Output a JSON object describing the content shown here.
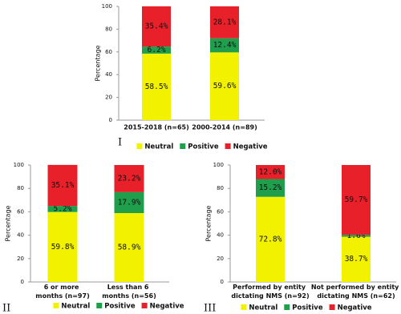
{
  "chart_data": [
    {
      "type": "stacked_bar",
      "panel_label": "I",
      "ylabel": "Percentage",
      "categories": [
        "2015-2018 (n=65)",
        "2000-2014 (n=89)"
      ],
      "ylim": [
        0,
        100
      ],
      "yticks": [
        0,
        20,
        40,
        60,
        80,
        100
      ],
      "series": [
        {
          "name": "Neutral",
          "color": "#f2f200",
          "values": [
            58.5,
            59.6
          ],
          "value_labels": [
            "58.5%",
            "59.6%"
          ]
        },
        {
          "name": "Positive",
          "color": "#1f9e4b",
          "values": [
            6.2,
            12.4
          ],
          "value_labels": [
            "6.2%",
            "12.4%"
          ]
        },
        {
          "name": "Negative",
          "color": "#e8202a",
          "values": [
            35.4,
            28.1
          ],
          "value_labels": [
            "35.4%",
            "28.1%"
          ]
        }
      ]
    },
    {
      "type": "stacked_bar",
      "panel_label": "II",
      "ylabel": "Percentage",
      "categories": [
        "6 or more months (n=97)",
        "Less than 6 months (n=56)"
      ],
      "ylim": [
        0,
        100
      ],
      "yticks": [
        0,
        20,
        40,
        60,
        80,
        100
      ],
      "series": [
        {
          "name": "Neutral",
          "color": "#f2f200",
          "values": [
            59.8,
            58.9
          ],
          "value_labels": [
            "59.8%",
            "58.9%"
          ]
        },
        {
          "name": "Positive",
          "color": "#1f9e4b",
          "values": [
            5.2,
            17.9
          ],
          "value_labels": [
            "5.2%",
            "17.9%"
          ]
        },
        {
          "name": "Negative",
          "color": "#e8202a",
          "values": [
            35.1,
            23.2
          ],
          "value_labels": [
            "35.1%",
            "23.2%"
          ]
        }
      ]
    },
    {
      "type": "stacked_bar",
      "panel_label": "III",
      "ylabel": "Percentage",
      "categories": [
        "Performed by entity dictating NMS (n=92)",
        "Not performed by entity dictating NMS (n=62)"
      ],
      "ylim": [
        0,
        100
      ],
      "yticks": [
        0,
        20,
        40,
        60,
        80,
        100
      ],
      "series": [
        {
          "name": "Neutral",
          "color": "#f2f200",
          "values": [
            72.8,
            38.7
          ],
          "value_labels": [
            "72.8%",
            "38.7%"
          ]
        },
        {
          "name": "Positive",
          "color": "#1f9e4b",
          "values": [
            15.2,
            1.6
          ],
          "value_labels": [
            "15.2%",
            "1.6%"
          ]
        },
        {
          "name": "Negative",
          "color": "#e8202a",
          "values": [
            12.0,
            59.7
          ],
          "value_labels": [
            "12.0%",
            "59.7%"
          ]
        }
      ]
    }
  ]
}
